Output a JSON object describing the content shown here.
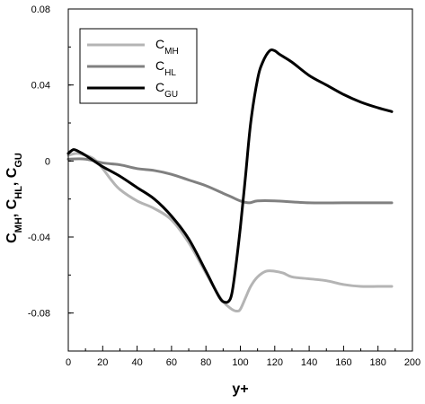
{
  "chart_data": {
    "type": "line",
    "xlabel": "y+",
    "ylabel": {
      "parts": [
        {
          "base": "C",
          "sub": "MH"
        },
        {
          "sep": ", "
        },
        {
          "base": "C",
          "sub": "HL"
        },
        {
          "sep": ", "
        },
        {
          "base": "C",
          "sub": "GU"
        }
      ]
    },
    "xlim": [
      0,
      200
    ],
    "ylim": [
      -0.1,
      0.08
    ],
    "x_ticks": [
      0,
      20,
      40,
      60,
      80,
      100,
      120,
      140,
      160,
      180,
      200
    ],
    "x_tick_labels": [
      "0",
      "20",
      "40",
      "60",
      "80",
      "100",
      "120",
      "140",
      "160",
      "180",
      "200"
    ],
    "y_ticks": [
      0.08,
      0.04,
      0,
      -0.04,
      -0.08
    ],
    "y_tick_labels": [
      "0.08",
      "0.04",
      "0",
      "-0.04",
      "-0.08"
    ],
    "grid": false,
    "legend_position": "top-left",
    "series": [
      {
        "name": {
          "base": "C",
          "sub": "MH"
        },
        "color": "#b4b4b4",
        "x": [
          0,
          5,
          10,
          15,
          20,
          25,
          30,
          40,
          50,
          60,
          70,
          80,
          85,
          90,
          95,
          98,
          100,
          103,
          106,
          110,
          115,
          120,
          125,
          130,
          140,
          150,
          160,
          170,
          180,
          188
        ],
        "y": [
          0.003,
          0.004,
          0.003,
          0.001,
          -0.004,
          -0.01,
          -0.015,
          -0.021,
          -0.025,
          -0.031,
          -0.043,
          -0.059,
          -0.067,
          -0.074,
          -0.078,
          -0.079,
          -0.078,
          -0.072,
          -0.066,
          -0.061,
          -0.058,
          -0.058,
          -0.059,
          -0.061,
          -0.062,
          -0.063,
          -0.065,
          -0.066,
          -0.066,
          -0.066
        ]
      },
      {
        "name": {
          "base": "C",
          "sub": "HL"
        },
        "color": "#808080",
        "x": [
          0,
          10,
          20,
          30,
          40,
          50,
          60,
          70,
          80,
          90,
          95,
          100,
          105,
          110,
          120,
          140,
          160,
          180,
          188
        ],
        "y": [
          0.001,
          0.001,
          -0.001,
          -0.002,
          -0.004,
          -0.005,
          -0.007,
          -0.01,
          -0.013,
          -0.017,
          -0.019,
          -0.021,
          -0.022,
          -0.021,
          -0.021,
          -0.022,
          -0.022,
          -0.022,
          -0.022
        ]
      },
      {
        "name": {
          "base": "C",
          "sub": "GU"
        },
        "color": "#000000",
        "x": [
          0,
          3,
          6,
          10,
          15,
          20,
          30,
          40,
          50,
          60,
          70,
          80,
          85,
          88,
          90,
          93,
          95,
          97,
          100,
          103,
          106,
          110,
          113,
          117,
          120,
          123,
          130,
          140,
          150,
          160,
          170,
          180,
          188
        ],
        "y": [
          0.004,
          0.006,
          0.005,
          0.003,
          0.0,
          -0.003,
          -0.008,
          -0.014,
          -0.02,
          -0.029,
          -0.041,
          -0.058,
          -0.067,
          -0.072,
          -0.074,
          -0.074,
          -0.07,
          -0.058,
          -0.035,
          -0.008,
          0.02,
          0.043,
          0.052,
          0.058,
          0.058,
          0.056,
          0.052,
          0.045,
          0.04,
          0.035,
          0.031,
          0.028,
          0.026
        ]
      }
    ]
  }
}
